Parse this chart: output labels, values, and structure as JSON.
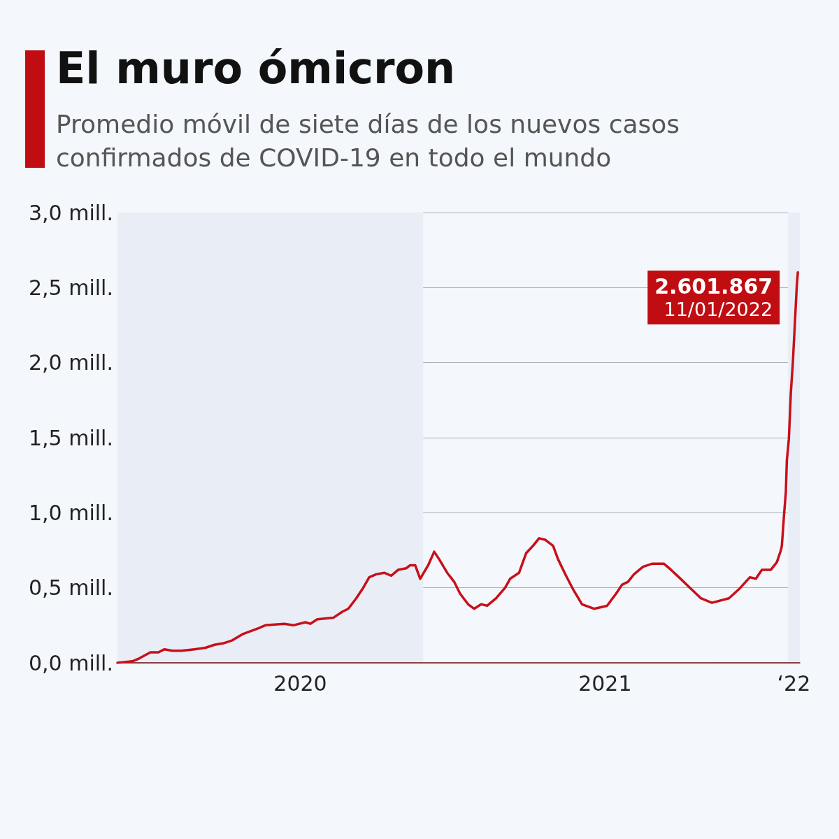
{
  "chart_data": {
    "type": "line",
    "title": "El muro ómicron",
    "subtitle": "Promedio móvil de siete días de los nuevos casos confirmados de COVID-19 en todo el mundo",
    "x": [
      "2020-03-01",
      "2020-03-16",
      "2020-03-23",
      "2020-04-03",
      "2020-04-11",
      "2020-04-17",
      "2020-04-25",
      "2020-05-04",
      "2020-05-17",
      "2020-05-28",
      "2020-06-06",
      "2020-06-15",
      "2020-06-24",
      "2020-07-04",
      "2020-07-20",
      "2020-07-27",
      "2020-08-15",
      "2020-08-24",
      "2020-09-05",
      "2020-09-10",
      "2020-09-17",
      "2020-10-03",
      "2020-10-12",
      "2020-10-18",
      "2020-10-26",
      "2020-11-02",
      "2020-11-08",
      "2020-11-15",
      "2020-11-23",
      "2020-11-30",
      "2020-12-07",
      "2020-12-15",
      "2020-12-19",
      "2020-12-24",
      "2020-12-29",
      "2021-01-06",
      "2021-01-12",
      "2021-01-17",
      "2021-01-25",
      "2021-02-01",
      "2021-02-07",
      "2021-02-15",
      "2021-02-21",
      "2021-02-28",
      "2021-03-06",
      "2021-03-15",
      "2021-03-24",
      "2021-03-29",
      "2021-04-07",
      "2021-04-14",
      "2021-04-21",
      "2021-04-27",
      "2021-05-03",
      "2021-05-11",
      "2021-05-16",
      "2021-05-24",
      "2021-05-31",
      "2021-06-09",
      "2021-06-21",
      "2021-07-04",
      "2021-07-13",
      "2021-07-19",
      "2021-07-25",
      "2021-07-31",
      "2021-08-09",
      "2021-08-18",
      "2021-08-30",
      "2021-09-06",
      "2021-09-14",
      "2021-09-25",
      "2021-10-06",
      "2021-10-17",
      "2021-11-03",
      "2021-11-13",
      "2021-11-24",
      "2021-11-30",
      "2021-12-06",
      "2021-12-15",
      "2021-12-21",
      "2021-12-25",
      "2021-12-26",
      "2021-12-28",
      "2021-12-30",
      "2021-12-31",
      "2022-01-02",
      "2022-01-04",
      "2022-01-06",
      "2022-01-08",
      "2022-01-10",
      "2022-01-11"
    ],
    "series": [
      {
        "color": "#c8101a",
        "values": [
          0.0,
          0.01,
          0.03,
          0.07,
          0.07,
          0.09,
          0.08,
          0.08,
          0.09,
          0.1,
          0.12,
          0.13,
          0.15,
          0.19,
          0.23,
          0.25,
          0.26,
          0.25,
          0.27,
          0.26,
          0.29,
          0.3,
          0.34,
          0.36,
          0.43,
          0.5,
          0.57,
          0.59,
          0.6,
          0.58,
          0.62,
          0.63,
          0.65,
          0.65,
          0.56,
          0.65,
          0.74,
          0.69,
          0.6,
          0.54,
          0.46,
          0.39,
          0.36,
          0.39,
          0.38,
          0.43,
          0.5,
          0.56,
          0.6,
          0.73,
          0.78,
          0.83,
          0.82,
          0.78,
          0.69,
          0.58,
          0.49,
          0.39,
          0.36,
          0.38,
          0.46,
          0.52,
          0.54,
          0.59,
          0.64,
          0.66,
          0.66,
          0.62,
          0.57,
          0.5,
          0.43,
          0.4,
          0.43,
          0.49,
          0.57,
          0.56,
          0.62,
          0.62,
          0.67,
          0.75,
          0.78,
          0.97,
          1.14,
          1.35,
          1.49,
          1.8,
          2.0,
          2.26,
          2.52,
          2.601867
        ]
      }
    ],
    "xlim": [
      "2020-03-01",
      "2022-01-13"
    ],
    "xticks": [
      {
        "value": "2020-08-31",
        "label": "2020"
      },
      {
        "value": "2021-07-02",
        "label": "2021"
      },
      {
        "value": "2022-01-07",
        "label": "‘22"
      }
    ],
    "ylim": [
      0,
      3
    ],
    "yticks": [
      {
        "value": 0,
        "label": "0,0 mill."
      },
      {
        "value": 0.5,
        "label": "0,5 mill."
      },
      {
        "value": 1,
        "label": "1,0 mill."
      },
      {
        "value": 1.5,
        "label": "1,5 mill."
      },
      {
        "value": 2,
        "label": "2,0 mill."
      },
      {
        "value": 2.5,
        "label": "2,5 mill."
      },
      {
        "value": 3,
        "label": "3,0 mill."
      }
    ],
    "grid": "y",
    "marker": "none",
    "line_style": "solid",
    "bands": [
      {
        "axis": "x",
        "from": "2020-03-01",
        "to": "2021-01-01",
        "color": "#e9eef6"
      },
      {
        "axis": "x",
        "from": "2022-01-01",
        "to": "2022-01-13",
        "color": "#e9eef6"
      }
    ],
    "annotations": [
      {
        "text": "2.601.867",
        "x": "2022-01-11",
        "y": 2.601867
      },
      {
        "text": "11/01/2022",
        "x": "2022-01-11",
        "y": 2.601867
      }
    ]
  }
}
